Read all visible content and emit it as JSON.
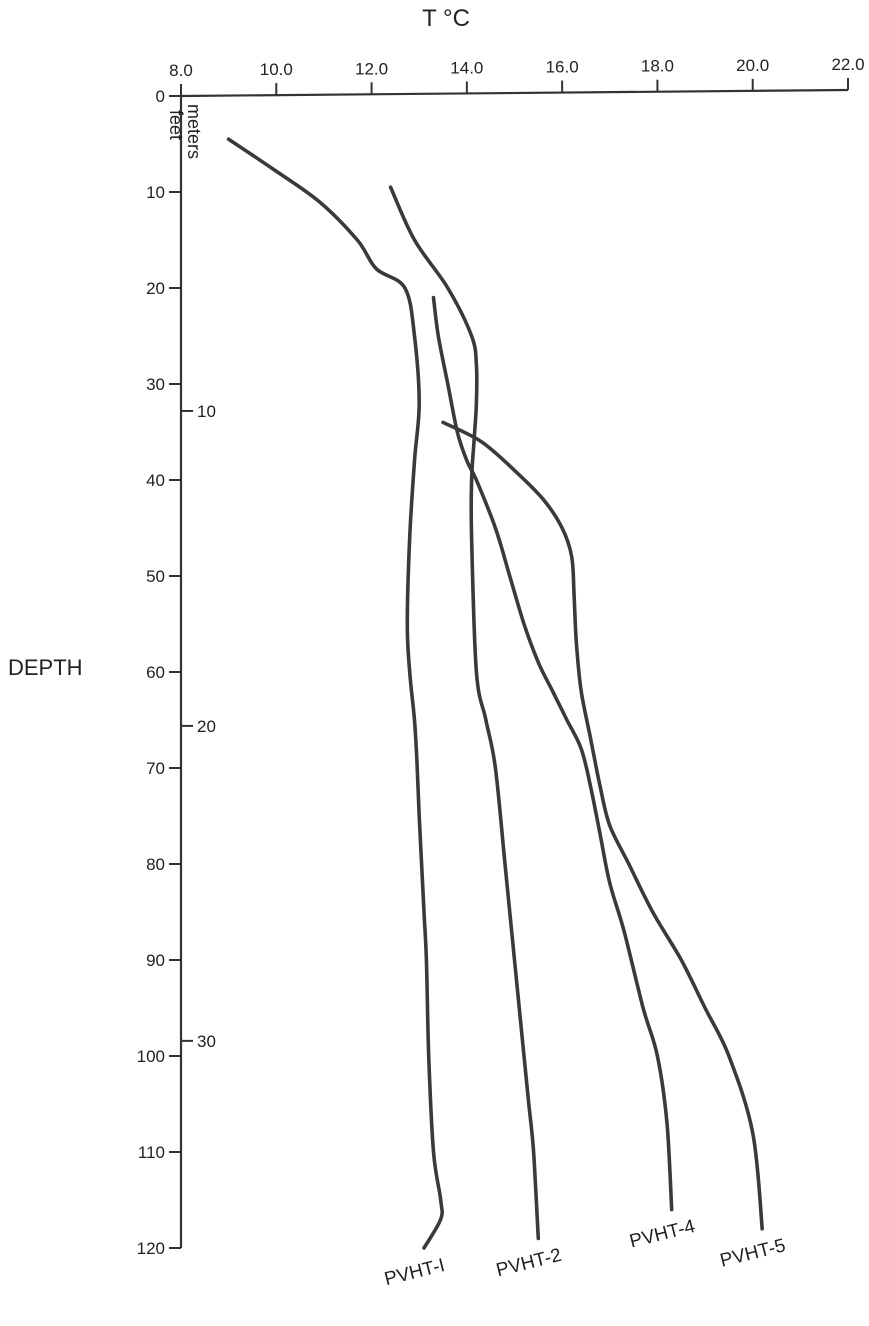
{
  "chart_data": {
    "type": "line",
    "title": "T °C",
    "xlabel": "T °C",
    "ylabel": "DEPTH",
    "xlim": [
      8.0,
      22.0
    ],
    "ylim": [
      0,
      120
    ],
    "x_ticks": [
      "8.0",
      "10.0",
      "12.0",
      "14.0",
      "16.0",
      "18.0",
      "20.0",
      "22.0"
    ],
    "y_ticks_feet": [
      "0",
      "10",
      "20",
      "30",
      "40",
      "50",
      "60",
      "70",
      "80",
      "90",
      "100",
      "110",
      "120"
    ],
    "y_ticks_meters": [
      "10",
      "20",
      "30"
    ],
    "unit_label_feet": "feet",
    "unit_label_meters": "meters",
    "grid": false,
    "series": [
      {
        "name": "PVHT-I",
        "x": [
          9.0,
          9.9,
          10.9,
          11.7,
          12.1,
          12.7,
          12.9,
          13.0,
          12.9,
          12.8,
          12.75,
          12.8,
          12.9,
          12.95,
          13.0,
          13.05,
          13.1,
          13.15,
          13.2,
          13.3,
          13.45,
          13.45,
          13.1
        ],
        "y": [
          4.5,
          7.5,
          11.0,
          15.0,
          18.0,
          20.0,
          25.0,
          32.0,
          38.0,
          46.0,
          55.0,
          60.0,
          65.0,
          69.0,
          75.0,
          80.0,
          85.0,
          90.0,
          100.0,
          110.0,
          115.0,
          117.0,
          120.0
        ]
      },
      {
        "name": "PVHT-2",
        "x": [
          12.4,
          12.9,
          13.6,
          14.1,
          14.2,
          14.2,
          14.15,
          14.1,
          14.1,
          14.2,
          14.4,
          14.6,
          14.8,
          15.0,
          15.2,
          15.3,
          15.4,
          15.5
        ],
        "y": [
          9.5,
          15.0,
          20.0,
          25.0,
          28.0,
          32.0,
          36.0,
          40.0,
          46.0,
          60.0,
          65.0,
          70.0,
          80.0,
          90.0,
          100.0,
          105.0,
          110.0,
          119.0
        ]
      },
      {
        "name": "PVHT-4",
        "x": [
          13.3,
          13.4,
          13.6,
          13.8,
          14.0,
          14.2,
          14.6,
          14.9,
          15.2,
          15.5,
          15.8,
          16.1,
          16.4,
          16.6,
          16.8,
          17.0,
          17.3,
          17.7,
          18.0,
          18.2,
          18.3
        ],
        "y": [
          21.0,
          25.0,
          30.0,
          35.0,
          38.0,
          40.0,
          45.0,
          50.0,
          55.0,
          59.0,
          62.0,
          65.0,
          68.0,
          72.0,
          77.0,
          82.0,
          87.0,
          95.0,
          100.0,
          107.0,
          116.0
        ]
      },
      {
        "name": "PVHT-5",
        "x": [
          13.5,
          14.3,
          15.0,
          15.6,
          16.0,
          16.2,
          16.25,
          16.3,
          16.4,
          16.6,
          16.8,
          17.0,
          17.4,
          17.9,
          18.5,
          19.0,
          19.5,
          20.0,
          20.2
        ],
        "y": [
          34.0,
          36.0,
          39.0,
          42.0,
          45.0,
          48.0,
          52.0,
          57.0,
          62.0,
          67.0,
          72.0,
          76.0,
          80.0,
          85.0,
          90.0,
          95.0,
          100.0,
          108.0,
          118.0
        ]
      }
    ]
  }
}
